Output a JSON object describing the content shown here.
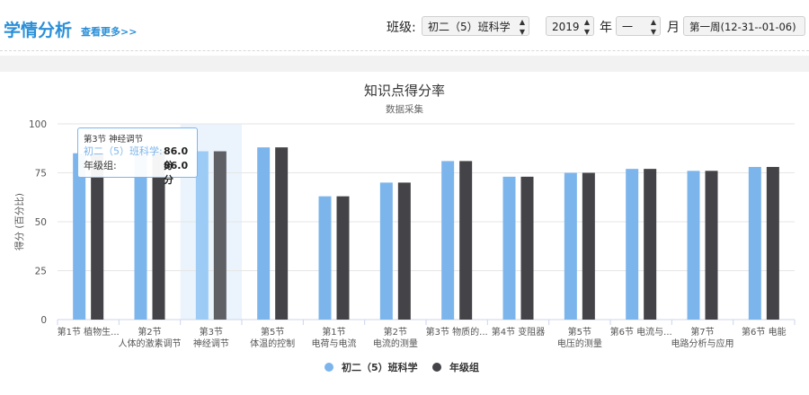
{
  "header": {
    "title": "学情分析",
    "more_link": "查看更多>>",
    "class_label": "班级:",
    "class_value": "初二（5）班科学",
    "year_value": "2019",
    "year_label": "年",
    "month_value": "一",
    "month_label": "月",
    "week_value": "第一周(12-31--01-06)"
  },
  "chart_data": {
    "type": "bar",
    "title": "知识点得分率",
    "subtitle": "数据采集",
    "ylabel": "得分 (百分比)",
    "ylim": [
      0,
      100
    ],
    "yticks": [
      0,
      25,
      50,
      75,
      100
    ],
    "grid": true,
    "legend_position": "bottom-center",
    "categories": [
      {
        "line1": "第1节  植物生...",
        "line2": ""
      },
      {
        "line1": "第2节",
        "line2": "人体的激素调节"
      },
      {
        "line1": "第3节",
        "line2": "神经调节"
      },
      {
        "line1": "第5节",
        "line2": "体温的控制"
      },
      {
        "line1": "第1节",
        "line2": "电荷与电流"
      },
      {
        "line1": "第2节",
        "line2": "电流的测量"
      },
      {
        "line1": "第3节  物质的...",
        "line2": ""
      },
      {
        "line1": "第4节  变阻器",
        "line2": ""
      },
      {
        "line1": "第5节",
        "line2": "电压的测量"
      },
      {
        "line1": "第6节  电流与...",
        "line2": ""
      },
      {
        "line1": "第7节",
        "line2": "电路分析与应用"
      },
      {
        "line1": "第6节  电能",
        "line2": ""
      }
    ],
    "series": [
      {
        "name": "初二（5）班科学",
        "color": "#7cb5ec",
        "values": [
          85,
          86,
          86,
          88,
          63,
          70,
          81,
          73,
          75,
          77,
          76,
          78
        ]
      },
      {
        "name": "年级组",
        "color": "#434348",
        "values": [
          85,
          86,
          86,
          88,
          63,
          70,
          81,
          73,
          75,
          77,
          76,
          78
        ]
      }
    ],
    "highlighted_index": 2,
    "tooltip": {
      "title": "第3节 神经调节",
      "rows": [
        {
          "label": "初二（5）班科学:",
          "value": "86.0 分"
        },
        {
          "label": "年级组:",
          "value": "86.0 分"
        }
      ]
    }
  }
}
